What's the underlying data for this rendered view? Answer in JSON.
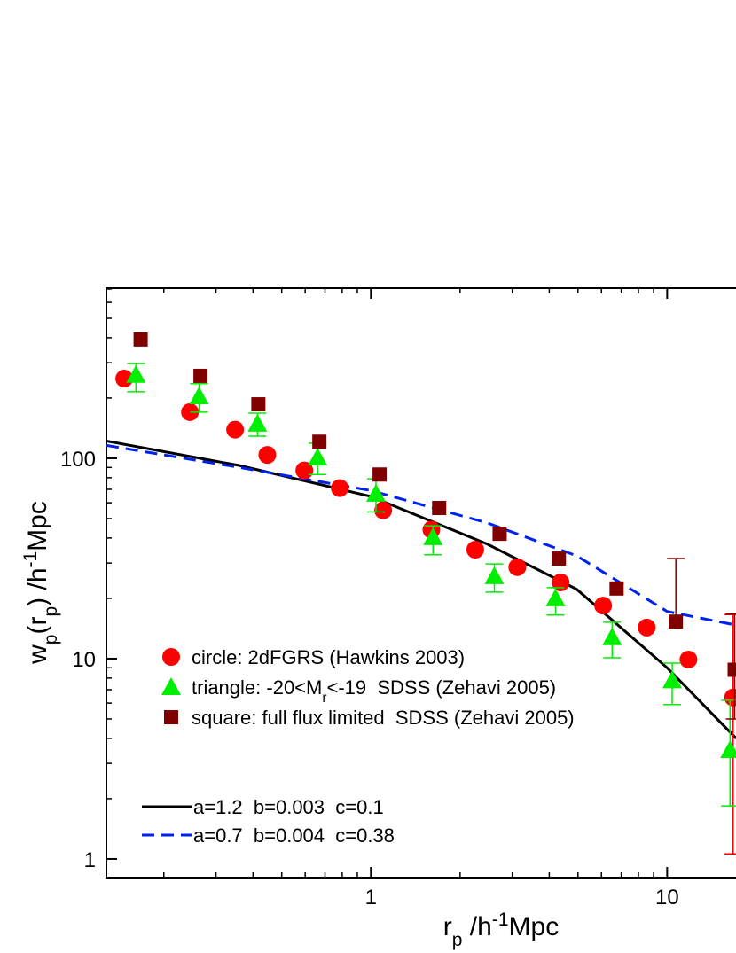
{
  "chart_data": {
    "type": "scatter",
    "xlog": true,
    "ylog": true,
    "xlim": [
      0.128,
      19.6
    ],
    "ylim": [
      0.807,
      707
    ],
    "xticks": [
      1,
      10
    ],
    "yticks": [
      1,
      10,
      100
    ],
    "xminor_ticks": [
      0.2,
      0.3,
      0.4,
      0.5,
      0.6,
      0.7,
      0.8,
      0.9,
      2,
      3,
      4,
      5,
      6,
      7,
      8,
      9
    ],
    "yminor_ticks": [
      2,
      3,
      4,
      5,
      6,
      7,
      8,
      9,
      20,
      30,
      40,
      50,
      60,
      70,
      80,
      90,
      200,
      300,
      400,
      500,
      600,
      700
    ],
    "xlabel": [
      {
        "text": "r"
      },
      {
        "text": "p",
        "shift": "sub"
      },
      {
        "text": " /h"
      },
      {
        "text": "-1",
        "shift": "super"
      },
      {
        "text": "Mpc"
      }
    ],
    "ylabel": [
      {
        "text": "w"
      },
      {
        "text": "p",
        "shift": "sub"
      },
      {
        "text": "(r"
      },
      {
        "text": "p",
        "shift": "sub"
      },
      {
        "text": ") /h"
      },
      {
        "text": "-1",
        "shift": "super"
      },
      {
        "text": "Mpc"
      }
    ],
    "series": [
      {
        "name": [
          {
            "text": "circle: 2dFGRS (Hawkins 2003)"
          }
        ],
        "marker": "circle",
        "color": "#ff0000",
        "x": [
          0.147,
          0.245,
          0.348,
          0.447,
          0.596,
          0.785,
          1.1,
          1.6,
          2.25,
          3.12,
          4.37,
          6.08,
          8.53,
          11.8,
          16.7
        ],
        "values": [
          250,
          170,
          139,
          104,
          87,
          71,
          55,
          44,
          35,
          28.6,
          24,
          18.4,
          14.3,
          9.9,
          6.4
        ],
        "error_low": [
          null,
          null,
          null,
          null,
          null,
          null,
          null,
          null,
          null,
          null,
          null,
          null,
          null,
          null,
          1.06
        ],
        "error_high": [
          null,
          null,
          null,
          null,
          null,
          null,
          null,
          null,
          null,
          null,
          null,
          null,
          null,
          null,
          16.6
        ]
      },
      {
        "name": [
          {
            "text": "triangle: -20<M"
          },
          {
            "text": "r",
            "shift": "sub"
          },
          {
            "text": "<-19  SDSS (Zehavi 2005)"
          }
        ],
        "marker": "triangle",
        "color": "#00ee00",
        "x": [
          0.161,
          0.263,
          0.414,
          0.661,
          1.04,
          1.62,
          2.61,
          4.2,
          6.52,
          10.4,
          16.3
        ],
        "values": [
          261,
          204,
          149,
          101,
          66.6,
          40.4,
          25.8,
          20.0,
          12.8,
          7.8,
          3.5
        ],
        "error_low": [
          215,
          170,
          129,
          83,
          54,
          33,
          21.5,
          16.5,
          10.1,
          5.9,
          1.84
        ],
        "error_high": [
          297,
          236,
          168,
          119,
          79,
          46,
          29.7,
          22.6,
          15.2,
          9.5,
          6.2
        ]
      },
      {
        "name": [
          {
            "text": "square: full flux limited  SDSS (Zehavi 2005)"
          }
        ],
        "marker": "square",
        "color": "#800000",
        "x": [
          0.167,
          0.266,
          0.417,
          0.67,
          1.07,
          1.7,
          2.72,
          4.31,
          6.75,
          10.7,
          16.9
        ],
        "values": [
          392,
          258,
          186,
          121,
          83,
          56.5,
          42,
          31.6,
          22.4,
          15.3,
          8.8
        ],
        "error_low": [
          null,
          null,
          null,
          null,
          null,
          null,
          null,
          null,
          null,
          null,
          5.0
        ],
        "error_high": [
          null,
          null,
          null,
          null,
          null,
          null,
          null,
          null,
          null,
          31.6,
          16.7
        ]
      }
    ],
    "lines": [
      {
        "name": "a=1.2  b=0.003  c=0.1",
        "color": "#000000",
        "dashed": false,
        "x": [
          0.128,
          0.36,
          1,
          2.48,
          4.95,
          10,
          17.1
        ],
        "values": [
          122,
          92,
          64.5,
          37.2,
          22.2,
          9.0,
          4.0
        ]
      },
      {
        "name": "a=0.7  b=0.004  c=0.38",
        "color": "#0022ee",
        "dashed": true,
        "x": [
          0.128,
          0.36,
          1,
          2.48,
          4.95,
          10,
          17.1
        ],
        "values": [
          116,
          90,
          69,
          47.5,
          32.6,
          17.2,
          14.7
        ]
      }
    ]
  }
}
